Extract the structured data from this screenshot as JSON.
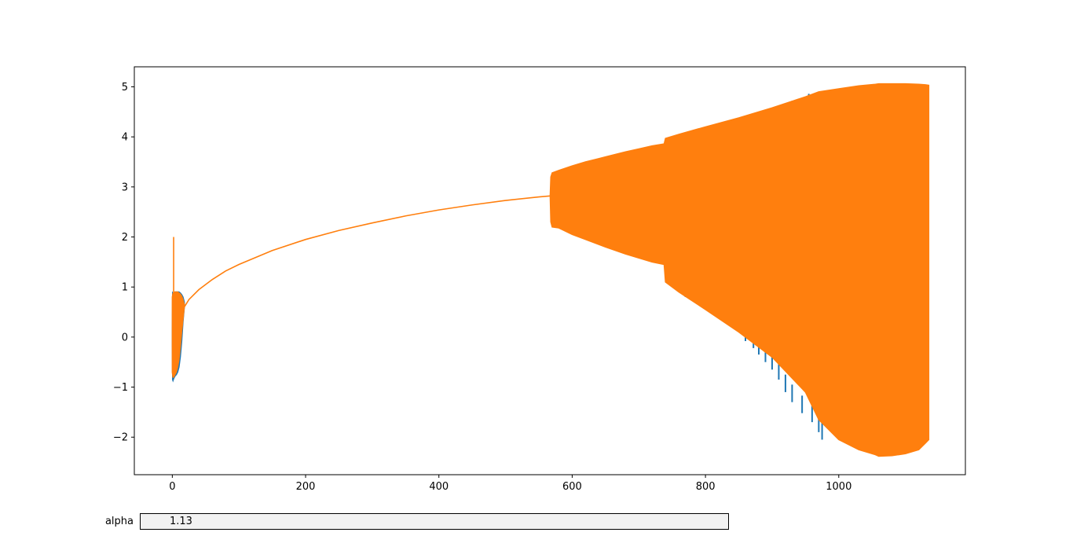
{
  "chart_data": {
    "type": "line",
    "title": "",
    "xlabel": "",
    "ylabel": "",
    "xlim": [
      -57,
      1190
    ],
    "ylim": [
      -2.75,
      5.4
    ],
    "x_ticks": [
      0,
      200,
      400,
      600,
      800,
      1000
    ],
    "y_ticks": [
      -2,
      -1,
      0,
      1,
      2,
      3,
      4,
      5
    ],
    "x_tick_labels": [
      "0",
      "200",
      "400",
      "600",
      "800",
      "1000"
    ],
    "y_tick_labels": [
      "−2",
      "−1",
      "0",
      "1",
      "2",
      "3",
      "4",
      "5"
    ],
    "grid": false,
    "series": [
      {
        "color": "#1f77b4",
        "envelope": {
          "x": [
            0,
            0.5,
            1,
            2,
            4,
            6,
            8,
            10,
            12,
            14,
            16,
            18
          ],
          "upper": [
            0.1,
            0.88,
            0.87,
            0.86,
            0.9,
            0.9,
            0.9,
            0.9,
            0.88,
            0.85,
            0.8,
            0.7
          ],
          "lower": [
            -0.1,
            -0.85,
            -0.87,
            -0.83,
            -0.78,
            -0.75,
            -0.7,
            -0.6,
            -0.4,
            -0.1,
            0.3,
            0.6
          ]
        },
        "envelope_lower_spikes": {
          "x": [
            770,
            800,
            830,
            845,
            860,
            872,
            880,
            890,
            900,
            910,
            920,
            930,
            945,
            960,
            970,
            975
          ],
          "lower": [
            0.8,
            0.55,
            0.35,
            0.2,
            -0.08,
            -0.22,
            -0.35,
            -0.5,
            -0.65,
            -0.85,
            -1.1,
            -1.3,
            -1.52,
            -1.7,
            -1.9,
            -2.05
          ]
        },
        "envelope_upper_spikes": {
          "x": [
            880,
            900,
            930,
            955
          ],
          "upper": [
            4.48,
            4.58,
            4.72,
            4.86
          ]
        }
      },
      {
        "color": "#ff7f0e",
        "spike": {
          "x": 2,
          "y": 2.0
        },
        "initial_envelope": {
          "x": [
            0,
            1,
            2,
            4,
            6,
            8,
            10,
            12,
            14,
            16,
            18
          ],
          "upper": [
            0.8,
            0.87,
            0.88,
            0.9,
            0.9,
            0.9,
            0.88,
            0.86,
            0.82,
            0.75,
            0.65
          ],
          "lower": [
            -0.7,
            -0.8,
            -0.8,
            -0.75,
            -0.7,
            -0.6,
            -0.45,
            -0.2,
            0.1,
            0.35,
            0.6
          ]
        },
        "smooth_curve": {
          "x": [
            18,
            25,
            40,
            60,
            80,
            100,
            150,
            200,
            250,
            300,
            350,
            400,
            450,
            500,
            550,
            567
          ],
          "y": [
            0.6,
            0.75,
            0.95,
            1.15,
            1.32,
            1.45,
            1.73,
            1.95,
            2.13,
            2.28,
            2.42,
            2.54,
            2.64,
            2.73,
            2.8,
            2.82
          ]
        },
        "oscillation_envelope": {
          "x": [
            567,
            568,
            570,
            580,
            600,
            620,
            650,
            680,
            700,
            720,
            738,
            740,
            760,
            800,
            850,
            900,
            950,
            970,
            1000,
            1030,
            1055,
            1060,
            1080,
            1100,
            1120,
            1130,
            1135
          ],
          "upper": [
            2.82,
            3.2,
            3.28,
            3.33,
            3.42,
            3.5,
            3.6,
            3.7,
            3.76,
            3.82,
            3.86,
            3.97,
            4.05,
            4.2,
            4.38,
            4.58,
            4.8,
            4.9,
            4.96,
            5.02,
            5.05,
            5.06,
            5.06,
            5.06,
            5.05,
            5.04,
            5.03
          ],
          "lower": [
            2.82,
            2.3,
            2.2,
            2.18,
            2.05,
            1.95,
            1.8,
            1.66,
            1.58,
            1.5,
            1.45,
            1.1,
            0.9,
            0.55,
            0.1,
            -0.4,
            -1.1,
            -1.65,
            -2.05,
            -2.25,
            -2.35,
            -2.38,
            -2.37,
            -2.33,
            -2.25,
            -2.12,
            -2.05
          ]
        }
      }
    ]
  },
  "widget": {
    "label": "alpha",
    "value": "1.13"
  }
}
